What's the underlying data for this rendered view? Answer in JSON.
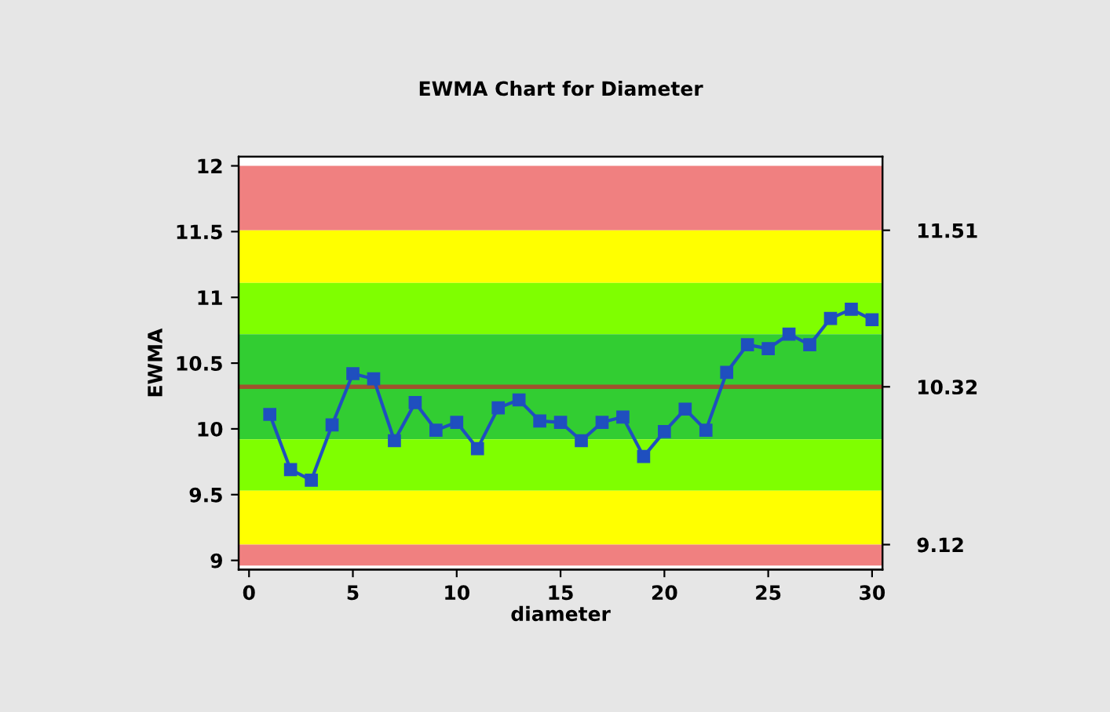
{
  "chart_data": {
    "type": "line",
    "title": "EWMA Chart for Diameter",
    "xlabel": "diameter",
    "ylabel": "EWMA",
    "x": [
      1,
      2,
      3,
      4,
      5,
      6,
      7,
      8,
      9,
      10,
      11,
      12,
      13,
      14,
      15,
      16,
      17,
      18,
      19,
      20,
      21,
      22,
      23,
      24,
      25,
      26,
      27,
      28,
      29,
      30
    ],
    "series": [
      {
        "color": "#1f4fbf",
        "values": [
          10.11,
          9.69,
          9.61,
          10.03,
          10.42,
          10.38,
          9.91,
          10.2,
          9.99,
          10.05,
          9.85,
          10.16,
          10.22,
          10.06,
          10.05,
          9.91,
          10.05,
          10.09,
          9.79,
          9.98,
          10.15,
          9.99,
          10.43,
          10.64,
          10.61,
          10.72,
          10.64,
          10.84,
          10.91,
          10.83
        ]
      }
    ],
    "xlim": [
      -0.5,
      30.5
    ],
    "xticks": [
      0,
      5,
      10,
      15,
      20,
      25,
      30
    ],
    "ylim": [
      8.93,
      12.07
    ],
    "yticks": [
      9,
      9.5,
      10,
      10.5,
      11,
      11.5,
      12
    ],
    "y2lim": [
      8.93,
      12.07
    ],
    "y2ticks": [
      9.12,
      10.32,
      11.51
    ],
    "bands": [
      {
        "axis": "y",
        "from": 11.51,
        "to": 12.0,
        "color": "#f08080"
      },
      {
        "axis": "y",
        "from": 11.11,
        "to": 11.51,
        "color": "#ffff00"
      },
      {
        "axis": "y",
        "from": 10.72,
        "to": 11.11,
        "color": "#7fff00"
      },
      {
        "axis": "y",
        "from": 9.92,
        "to": 10.72,
        "color": "#32cd32"
      },
      {
        "axis": "y",
        "from": 9.53,
        "to": 9.92,
        "color": "#7fff00"
      },
      {
        "axis": "y",
        "from": 9.12,
        "to": 9.53,
        "color": "#ffff00"
      },
      {
        "axis": "y",
        "from": 8.96,
        "to": 9.12,
        "color": "#f08080"
      }
    ],
    "ref_lines": [
      {
        "axis": "y",
        "value": 10.32,
        "color": "#a0522d",
        "line_style": "solid"
      }
    ],
    "marker": "square",
    "line_style": "solid",
    "grid": false,
    "legend": false
  }
}
